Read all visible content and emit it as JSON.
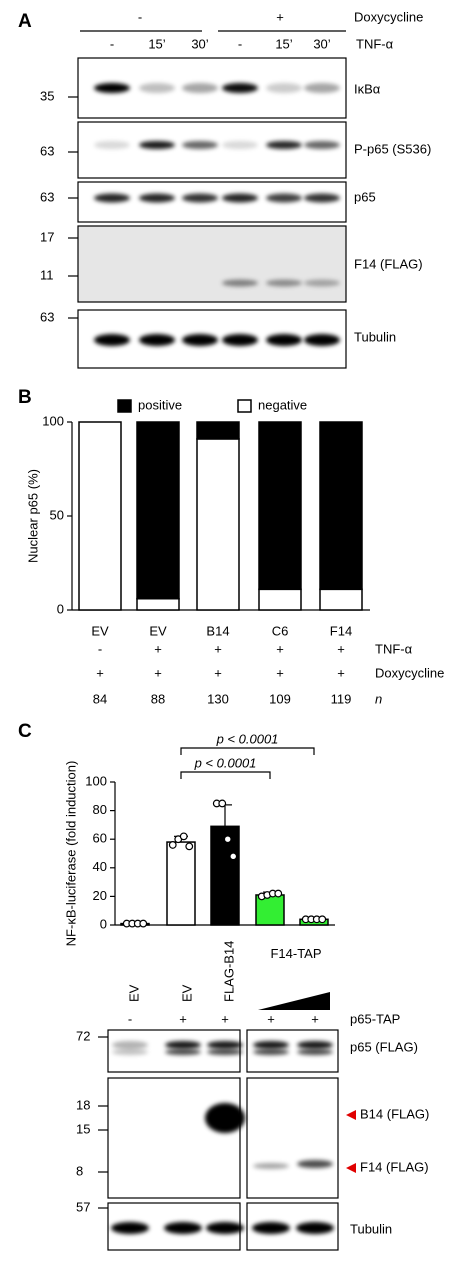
{
  "panel_a": {
    "letter": "A",
    "groups": [
      "-",
      "+"
    ],
    "group_label": "Doxycycline",
    "lanes": [
      "-",
      "15’",
      "30’",
      "-",
      "15’",
      "30’"
    ],
    "lane_label": "TNF-α",
    "blots": [
      {
        "label": "IκBα",
        "markers": [
          35
        ]
      },
      {
        "label": "P-p65 (S536)",
        "markers": [
          63
        ]
      },
      {
        "label": "p65",
        "markers": [
          63
        ]
      },
      {
        "label": "F14 (FLAG)",
        "markers": [
          17,
          11
        ]
      },
      {
        "label": "Tubulin",
        "markers": [
          63
        ]
      }
    ]
  },
  "panel_b": {
    "letter": "B",
    "rows": [
      {
        "label": "TNF-α",
        "cells": [
          "-",
          "+",
          "+",
          "+",
          "+"
        ]
      },
      {
        "label": "Doxycycline",
        "cells": [
          "+",
          "+",
          "+",
          "+",
          "+"
        ]
      },
      {
        "label": "n",
        "cells": [
          84,
          88,
          130,
          109,
          119
        ]
      }
    ]
  },
  "panel_c": {
    "letter": "C",
    "lanes": [
      "EV",
      "EV",
      "FLAG-B14"
    ],
    "titration": "F14-TAP",
    "p65_row": {
      "label": "p65-TAP",
      "cells": [
        "-",
        "+",
        "+",
        "+",
        "+"
      ]
    },
    "blots": [
      {
        "labels": [
          "p65 (FLAG)"
        ],
        "markers": [
          72
        ]
      },
      {
        "labels": [
          "B14 (FLAG)",
          "F14 (FLAG)"
        ],
        "markers": [
          18,
          15,
          8
        ]
      },
      {
        "labels": [
          "Tubulin"
        ],
        "markers": [
          57
        ]
      }
    ]
  },
  "chart_data": [
    {
      "type": "bar",
      "stacked": true,
      "ylabel": "Nuclear p65 (%)",
      "categories": [
        "EV",
        "EV",
        "B14",
        "C6",
        "F14"
      ],
      "series": [
        {
          "name": "positive",
          "color": "#000000",
          "values": [
            0,
            94,
            9,
            89,
            89
          ]
        },
        {
          "name": "negative",
          "color": "#ffffff",
          "values": [
            100,
            6,
            91,
            11,
            11
          ]
        }
      ],
      "ylim": [
        0,
        100
      ],
      "yticks": [
        0,
        50,
        100
      ]
    },
    {
      "type": "bar",
      "ylabel": "NF-κB-luciferase (fold induction)",
      "values": [
        1,
        58,
        69,
        21,
        4
      ],
      "errors": [
        0.5,
        4,
        15,
        2,
        1
      ],
      "colors": [
        "#ffffff",
        "#ffffff",
        "#000000",
        "#33ee33",
        "#33ee33"
      ],
      "points": [
        [
          1,
          1,
          1,
          1
        ],
        [
          56,
          60,
          62,
          55
        ],
        [
          85,
          85,
          60,
          48
        ],
        [
          20,
          21,
          22,
          22
        ],
        [
          4,
          4,
          4,
          4
        ]
      ],
      "annotations": [
        "p < 0.0001",
        "p < 0.0001"
      ],
      "ylim": [
        0,
        100
      ],
      "yticks": [
        0,
        20,
        40,
        60,
        80,
        100
      ]
    }
  ]
}
